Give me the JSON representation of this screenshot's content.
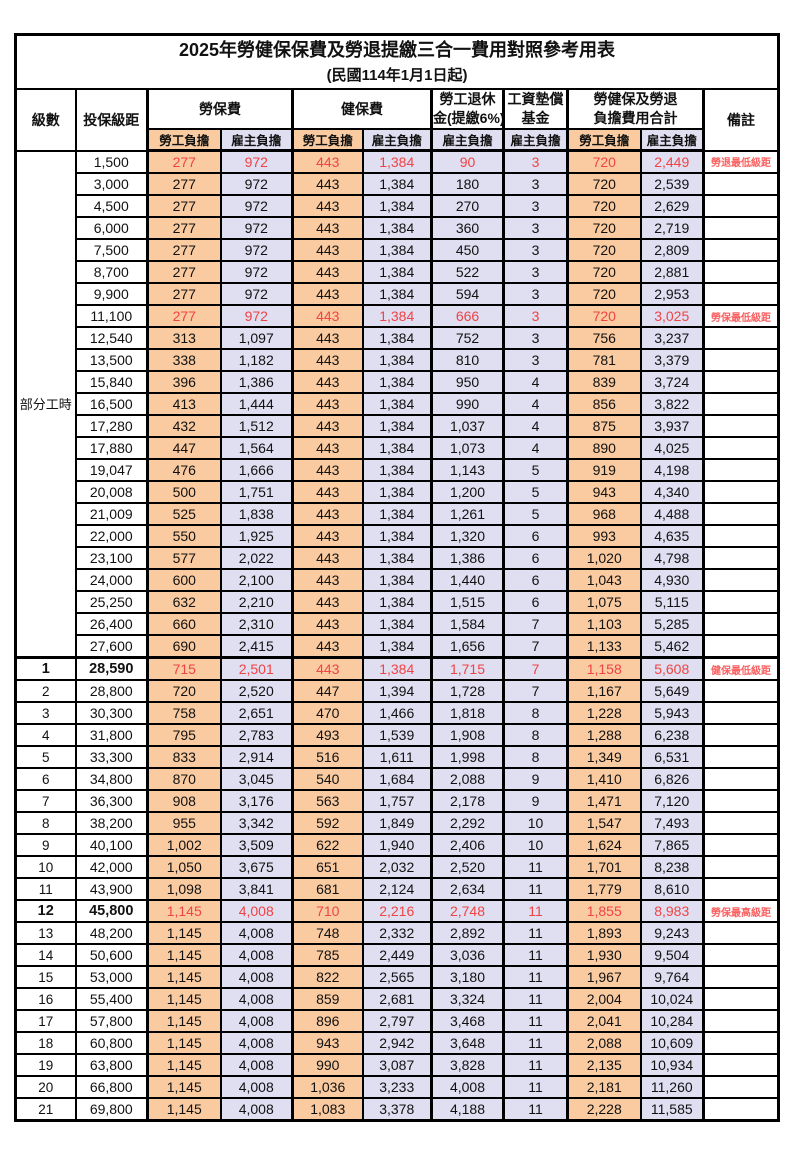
{
  "doc": {
    "title_line1": "2025年勞健保保費及勞退提繳三合一費用對照參考用表",
    "title_line2": "(民國114年1月1日起)"
  },
  "colors": {
    "employee_col_bg": "#FACBA0",
    "employer_col_bg": "#E0DEF1",
    "highlight_value_text": "#F04343",
    "remark_text": "#FB6060",
    "grid": "#000000"
  },
  "header": {
    "level": "級數",
    "bracket": "投保級距",
    "labor": "勞保費",
    "health": "健保費",
    "pension_l1": "勞工退休",
    "pension_l2": "金(提繳6%)",
    "fund_l1": "工資墊償",
    "fund_l2": "基金",
    "total_l1": "勞健保及勞退",
    "total_l2": "負擔費用合計",
    "remark": "備註",
    "employee": "勞工負擔",
    "employer": "雇主負擔"
  },
  "table": {
    "part_time_label": "部分工時",
    "part_time_rowspan": 23,
    "columns": [
      "級數",
      "投保級距",
      "勞保費-勞工負擔",
      "勞保費-雇主負擔",
      "健保費-勞工負擔",
      "健保費-雇主負擔",
      "勞工退休金(提繳6%)-雇主負擔",
      "工資墊償基金-雇主負擔",
      "合計-勞工負擔",
      "合計-雇主負擔",
      "備註"
    ],
    "rows": [
      {
        "level": "",
        "bracket": "1,500",
        "values": [
          "277",
          "972",
          "443",
          "1,384",
          "90",
          "3",
          "720",
          "2,449"
        ],
        "remark": "勞退最低級距",
        "highlight": true
      },
      {
        "level": "",
        "bracket": "3,000",
        "values": [
          "277",
          "972",
          "443",
          "1,384",
          "180",
          "3",
          "720",
          "2,539"
        ],
        "remark": ""
      },
      {
        "level": "",
        "bracket": "4,500",
        "values": [
          "277",
          "972",
          "443",
          "1,384",
          "270",
          "3",
          "720",
          "2,629"
        ],
        "remark": ""
      },
      {
        "level": "",
        "bracket": "6,000",
        "values": [
          "277",
          "972",
          "443",
          "1,384",
          "360",
          "3",
          "720",
          "2,719"
        ],
        "remark": ""
      },
      {
        "level": "",
        "bracket": "7,500",
        "values": [
          "277",
          "972",
          "443",
          "1,384",
          "450",
          "3",
          "720",
          "2,809"
        ],
        "remark": ""
      },
      {
        "level": "",
        "bracket": "8,700",
        "values": [
          "277",
          "972",
          "443",
          "1,384",
          "522",
          "3",
          "720",
          "2,881"
        ],
        "remark": ""
      },
      {
        "level": "",
        "bracket": "9,900",
        "values": [
          "277",
          "972",
          "443",
          "1,384",
          "594",
          "3",
          "720",
          "2,953"
        ],
        "remark": ""
      },
      {
        "level": "",
        "bracket": "11,100",
        "values": [
          "277",
          "972",
          "443",
          "1,384",
          "666",
          "3",
          "720",
          "3,025"
        ],
        "remark": "勞保最低級距",
        "highlight": true
      },
      {
        "level": "",
        "bracket": "12,540",
        "values": [
          "313",
          "1,097",
          "443",
          "1,384",
          "752",
          "3",
          "756",
          "3,237"
        ],
        "remark": ""
      },
      {
        "level": "",
        "bracket": "13,500",
        "values": [
          "338",
          "1,182",
          "443",
          "1,384",
          "810",
          "3",
          "781",
          "3,379"
        ],
        "remark": ""
      },
      {
        "level": "",
        "bracket": "15,840",
        "values": [
          "396",
          "1,386",
          "443",
          "1,384",
          "950",
          "4",
          "839",
          "3,724"
        ],
        "remark": ""
      },
      {
        "level": "",
        "bracket": "16,500",
        "values": [
          "413",
          "1,444",
          "443",
          "1,384",
          "990",
          "4",
          "856",
          "3,822"
        ],
        "remark": ""
      },
      {
        "level": "",
        "bracket": "17,280",
        "values": [
          "432",
          "1,512",
          "443",
          "1,384",
          "1,037",
          "4",
          "875",
          "3,937"
        ],
        "remark": ""
      },
      {
        "level": "",
        "bracket": "17,880",
        "values": [
          "447",
          "1,564",
          "443",
          "1,384",
          "1,073",
          "4",
          "890",
          "4,025"
        ],
        "remark": ""
      },
      {
        "level": "",
        "bracket": "19,047",
        "values": [
          "476",
          "1,666",
          "443",
          "1,384",
          "1,143",
          "5",
          "919",
          "4,198"
        ],
        "remark": ""
      },
      {
        "level": "",
        "bracket": "20,008",
        "values": [
          "500",
          "1,751",
          "443",
          "1,384",
          "1,200",
          "5",
          "943",
          "4,340"
        ],
        "remark": ""
      },
      {
        "level": "",
        "bracket": "21,009",
        "values": [
          "525",
          "1,838",
          "443",
          "1,384",
          "1,261",
          "5",
          "968",
          "4,488"
        ],
        "remark": ""
      },
      {
        "level": "",
        "bracket": "22,000",
        "values": [
          "550",
          "1,925",
          "443",
          "1,384",
          "1,320",
          "6",
          "993",
          "4,635"
        ],
        "remark": ""
      },
      {
        "level": "",
        "bracket": "23,100",
        "values": [
          "577",
          "2,022",
          "443",
          "1,384",
          "1,386",
          "6",
          "1,020",
          "4,798"
        ],
        "remark": ""
      },
      {
        "level": "",
        "bracket": "24,000",
        "values": [
          "600",
          "2,100",
          "443",
          "1,384",
          "1,440",
          "6",
          "1,043",
          "4,930"
        ],
        "remark": ""
      },
      {
        "level": "",
        "bracket": "25,250",
        "values": [
          "632",
          "2,210",
          "443",
          "1,384",
          "1,515",
          "6",
          "1,075",
          "5,115"
        ],
        "remark": ""
      },
      {
        "level": "",
        "bracket": "26,400",
        "values": [
          "660",
          "2,310",
          "443",
          "1,384",
          "1,584",
          "7",
          "1,103",
          "5,285"
        ],
        "remark": ""
      },
      {
        "level": "",
        "bracket": "27,600",
        "values": [
          "690",
          "2,415",
          "443",
          "1,384",
          "1,656",
          "7",
          "1,133",
          "5,462"
        ],
        "remark": ""
      },
      {
        "level": "1",
        "bracket": "28,590",
        "values": [
          "715",
          "2,501",
          "443",
          "1,384",
          "1,715",
          "7",
          "1,158",
          "5,608"
        ],
        "remark": "健保最低級距",
        "highlight": true,
        "thick_top": true
      },
      {
        "level": "2",
        "bracket": "28,800",
        "values": [
          "720",
          "2,520",
          "447",
          "1,394",
          "1,728",
          "7",
          "1,167",
          "5,649"
        ],
        "remark": ""
      },
      {
        "level": "3",
        "bracket": "30,300",
        "values": [
          "758",
          "2,651",
          "470",
          "1,466",
          "1,818",
          "8",
          "1,228",
          "5,943"
        ],
        "remark": ""
      },
      {
        "level": "4",
        "bracket": "31,800",
        "values": [
          "795",
          "2,783",
          "493",
          "1,539",
          "1,908",
          "8",
          "1,288",
          "6,238"
        ],
        "remark": ""
      },
      {
        "level": "5",
        "bracket": "33,300",
        "values": [
          "833",
          "2,914",
          "516",
          "1,611",
          "1,998",
          "8",
          "1,349",
          "6,531"
        ],
        "remark": ""
      },
      {
        "level": "6",
        "bracket": "34,800",
        "values": [
          "870",
          "3,045",
          "540",
          "1,684",
          "2,088",
          "9",
          "1,410",
          "6,826"
        ],
        "remark": ""
      },
      {
        "level": "7",
        "bracket": "36,300",
        "values": [
          "908",
          "3,176",
          "563",
          "1,757",
          "2,178",
          "9",
          "1,471",
          "7,120"
        ],
        "remark": ""
      },
      {
        "level": "8",
        "bracket": "38,200",
        "values": [
          "955",
          "3,342",
          "592",
          "1,849",
          "2,292",
          "10",
          "1,547",
          "7,493"
        ],
        "remark": ""
      },
      {
        "level": "9",
        "bracket": "40,100",
        "values": [
          "1,002",
          "3,509",
          "622",
          "1,940",
          "2,406",
          "10",
          "1,624",
          "7,865"
        ],
        "remark": ""
      },
      {
        "level": "10",
        "bracket": "42,000",
        "values": [
          "1,050",
          "3,675",
          "651",
          "2,032",
          "2,520",
          "11",
          "1,701",
          "8,238"
        ],
        "remark": ""
      },
      {
        "level": "11",
        "bracket": "43,900",
        "values": [
          "1,098",
          "3,841",
          "681",
          "2,124",
          "2,634",
          "11",
          "1,779",
          "8,610"
        ],
        "remark": ""
      },
      {
        "level": "12",
        "bracket": "45,800",
        "values": [
          "1,145",
          "4,008",
          "710",
          "2,216",
          "2,748",
          "11",
          "1,855",
          "8,983"
        ],
        "remark": "勞保最高級距",
        "highlight": true
      },
      {
        "level": "13",
        "bracket": "48,200",
        "values": [
          "1,145",
          "4,008",
          "748",
          "2,332",
          "2,892",
          "11",
          "1,893",
          "9,243"
        ],
        "remark": ""
      },
      {
        "level": "14",
        "bracket": "50,600",
        "values": [
          "1,145",
          "4,008",
          "785",
          "2,449",
          "3,036",
          "11",
          "1,930",
          "9,504"
        ],
        "remark": ""
      },
      {
        "level": "15",
        "bracket": "53,000",
        "values": [
          "1,145",
          "4,008",
          "822",
          "2,565",
          "3,180",
          "11",
          "1,967",
          "9,764"
        ],
        "remark": ""
      },
      {
        "level": "16",
        "bracket": "55,400",
        "values": [
          "1,145",
          "4,008",
          "859",
          "2,681",
          "3,324",
          "11",
          "2,004",
          "10,024"
        ],
        "remark": ""
      },
      {
        "level": "17",
        "bracket": "57,800",
        "values": [
          "1,145",
          "4,008",
          "896",
          "2,797",
          "3,468",
          "11",
          "2,041",
          "10,284"
        ],
        "remark": ""
      },
      {
        "level": "18",
        "bracket": "60,800",
        "values": [
          "1,145",
          "4,008",
          "943",
          "2,942",
          "3,648",
          "11",
          "2,088",
          "10,609"
        ],
        "remark": ""
      },
      {
        "level": "19",
        "bracket": "63,800",
        "values": [
          "1,145",
          "4,008",
          "990",
          "3,087",
          "3,828",
          "11",
          "2,135",
          "10,934"
        ],
        "remark": ""
      },
      {
        "level": "20",
        "bracket": "66,800",
        "values": [
          "1,145",
          "4,008",
          "1,036",
          "3,233",
          "4,008",
          "11",
          "2,181",
          "11,260"
        ],
        "remark": ""
      },
      {
        "level": "21",
        "bracket": "69,800",
        "values": [
          "1,145",
          "4,008",
          "1,083",
          "3,378",
          "4,188",
          "11",
          "2,228",
          "11,585"
        ],
        "remark": ""
      }
    ]
  }
}
